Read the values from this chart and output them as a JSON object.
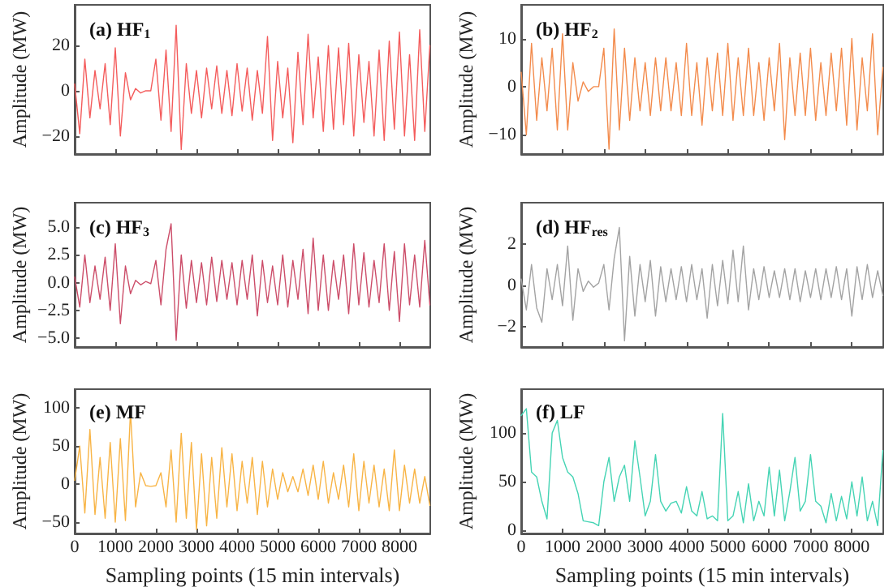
{
  "chart_data": [
    {
      "type": "line",
      "title": "(a) HF$_{1}$",
      "ylabel": "Amplitude (MW)",
      "tick_labels": "y",
      "xlim": [
        0,
        8760
      ],
      "xticks": [
        0,
        1000,
        2000,
        3000,
        4000,
        5000,
        6000,
        7000,
        8000
      ],
      "ylim": [
        -28,
        38
      ],
      "yticks": [
        {
          "value": -20,
          "label": "−20"
        },
        0,
        20
      ],
      "x": [
        0,
        125,
        250,
        375,
        500,
        625,
        750,
        875,
        1000,
        1125,
        1250,
        1375,
        1500,
        1625,
        1750,
        1875,
        2000,
        2125,
        2250,
        2375,
        2500,
        2625,
        2750,
        2875,
        3000,
        3125,
        3250,
        3375,
        3500,
        3625,
        3750,
        3875,
        4000,
        4125,
        4250,
        4375,
        4500,
        4625,
        4750,
        4875,
        5000,
        5125,
        5250,
        5375,
        5500,
        5625,
        5750,
        5875,
        6000,
        6125,
        6250,
        6375,
        6500,
        6625,
        6750,
        6875,
        7000,
        7125,
        7250,
        7375,
        7500,
        7625,
        7750,
        7875,
        8000,
        8125,
        8250,
        8375,
        8500,
        8625,
        8750
      ],
      "series": [
        {
          "color": "#f45c5c",
          "values": [
            3,
            -19,
            14,
            -12,
            9,
            -8,
            12,
            -15,
            19,
            -20,
            8,
            -4,
            1,
            -1,
            0,
            0,
            14,
            -13,
            18,
            -18,
            29,
            -26,
            12,
            -10,
            9,
            -12,
            10,
            -8,
            11,
            -10,
            9,
            -11,
            12,
            -9,
            10,
            -13,
            9,
            -10,
            24,
            -22,
            13,
            -12,
            10,
            -23,
            17,
            -15,
            25,
            -12,
            15,
            -18,
            20,
            -17,
            19,
            -15,
            21,
            -20,
            16,
            -14,
            13,
            -20,
            18,
            -22,
            22,
            -17,
            26,
            -20,
            16,
            -22,
            27,
            -18,
            20
          ]
        }
      ]
    },
    {
      "type": "line",
      "title": "(b) HF$_{2}$",
      "ylabel": "Amplitude (MW)",
      "tick_labels": "y",
      "xlim": [
        0,
        8760
      ],
      "xticks": [
        0,
        1000,
        2000,
        3000,
        4000,
        5000,
        6000,
        7000,
        8000
      ],
      "ylim": [
        -14,
        17
      ],
      "yticks": [
        {
          "value": -10,
          "label": "−10"
        },
        0,
        10
      ],
      "x": [
        0,
        125,
        250,
        375,
        500,
        625,
        750,
        875,
        1000,
        1125,
        1250,
        1375,
        1500,
        1625,
        1750,
        1875,
        2000,
        2125,
        2250,
        2375,
        2500,
        2625,
        2750,
        2875,
        3000,
        3125,
        3250,
        3375,
        3500,
        3625,
        3750,
        3875,
        4000,
        4125,
        4250,
        4375,
        4500,
        4625,
        4750,
        4875,
        5000,
        5125,
        5250,
        5375,
        5500,
        5625,
        5750,
        5875,
        6000,
        6125,
        6250,
        6375,
        6500,
        6625,
        6750,
        6875,
        7000,
        7125,
        7250,
        7375,
        7500,
        7625,
        7750,
        7875,
        8000,
        8125,
        8250,
        8375,
        8500,
        8625,
        8750
      ],
      "series": [
        {
          "color": "#f38b4c",
          "values": [
            3,
            -10,
            9,
            -7,
            6,
            -5,
            8,
            -9,
            11,
            -9,
            5,
            -3,
            1,
            -1,
            0,
            0,
            8,
            -13,
            12,
            -9,
            8,
            -7,
            6,
            -5,
            5,
            -6,
            6,
            -5,
            6,
            -5,
            5,
            -6,
            9,
            -6,
            5,
            -8,
            6,
            -5,
            7,
            -6,
            9,
            -7,
            6,
            -6,
            8,
            -6,
            5,
            -7,
            6,
            -5,
            9,
            -11,
            6,
            -6,
            7,
            -6,
            8,
            -7,
            5,
            -6,
            7,
            -5,
            8,
            -8,
            10,
            -9,
            6,
            -5,
            11,
            -10,
            4
          ]
        }
      ]
    },
    {
      "type": "line",
      "title": "(c) HF$_{3}$",
      "ylabel": "Amplitude (MW)",
      "tick_labels": "y",
      "xlim": [
        0,
        8760
      ],
      "xticks": [
        0,
        1000,
        2000,
        3000,
        4000,
        5000,
        6000,
        7000,
        8000
      ],
      "ylim": [
        -5.8,
        7.2
      ],
      "yticks": [
        {
          "value": -5,
          "label": "−5.0"
        },
        {
          "value": -2.5,
          "label": "−2.5"
        },
        {
          "value": 0,
          "label": "0.0"
        },
        2.5,
        {
          "value": 5,
          "label": "5.0"
        }
      ],
      "x": [
        0,
        125,
        250,
        375,
        500,
        625,
        750,
        875,
        1000,
        1125,
        1250,
        1375,
        1500,
        1625,
        1750,
        1875,
        2000,
        2125,
        2250,
        2375,
        2500,
        2625,
        2750,
        2875,
        3000,
        3125,
        3250,
        3375,
        3500,
        3625,
        3750,
        3875,
        4000,
        4125,
        4250,
        4375,
        4500,
        4625,
        4750,
        4875,
        5000,
        5125,
        5250,
        5375,
        5500,
        5625,
        5750,
        5875,
        6000,
        6125,
        6250,
        6375,
        6500,
        6625,
        6750,
        6875,
        7000,
        7125,
        7250,
        7375,
        7500,
        7625,
        7750,
        7875,
        8000,
        8125,
        8250,
        8375,
        8500,
        8625,
        8750
      ],
      "series": [
        {
          "color": "#cc4d69",
          "values": [
            0.5,
            -2.2,
            2.5,
            -1.8,
            1.5,
            -1.5,
            2.3,
            -2.5,
            3.5,
            -3.7,
            1.5,
            -1,
            0.2,
            -0.2,
            0.1,
            -0.1,
            2,
            -2,
            3,
            5.3,
            -5.2,
            2.5,
            -2.3,
            2,
            -1.8,
            1.8,
            -2,
            2.3,
            -1.7,
            2,
            -1.5,
            1.8,
            -2,
            2,
            -1.5,
            2.5,
            -3,
            2,
            -1.8,
            1.5,
            -2,
            2.5,
            -2.2,
            2,
            -1.5,
            3,
            -2.8,
            4,
            -2.5,
            2.5,
            -2.5,
            2,
            -1.5,
            2.5,
            -2.8,
            3.5,
            -2,
            2.7,
            -2.2,
            2,
            -1.8,
            3.5,
            -2.5,
            2.8,
            -3.5,
            3.5,
            -2,
            2.5,
            -2.2,
            3.8,
            -2
          ]
        }
      ]
    },
    {
      "type": "line",
      "title": "(d) HF$_{res}$",
      "ylabel": "Amplitude (MW)",
      "tick_labels": "y",
      "xlim": [
        0,
        8760
      ],
      "xticks": [
        0,
        1000,
        2000,
        3000,
        4000,
        5000,
        6000,
        7000,
        8000
      ],
      "ylim": [
        -3,
        4
      ],
      "yticks": [
        {
          "value": -2,
          "label": "−2"
        },
        0,
        2
      ],
      "x": [
        0,
        125,
        250,
        375,
        500,
        625,
        750,
        875,
        1000,
        1125,
        1250,
        1375,
        1500,
        1625,
        1750,
        1875,
        2000,
        2125,
        2250,
        2375,
        2500,
        2625,
        2750,
        2875,
        3000,
        3125,
        3250,
        3375,
        3500,
        3625,
        3750,
        3875,
        4000,
        4125,
        4250,
        4375,
        4500,
        4625,
        4750,
        4875,
        5000,
        5125,
        5250,
        5375,
        5500,
        5625,
        5750,
        5875,
        6000,
        6125,
        6250,
        6375,
        6500,
        6625,
        6750,
        6875,
        7000,
        7125,
        7250,
        7375,
        7500,
        7625,
        7750,
        7875,
        8000,
        8125,
        8250,
        8375,
        8500,
        8625,
        8750
      ],
      "series": [
        {
          "color": "#a3a3a3",
          "values": [
            0.3,
            -1.2,
            1,
            -1.1,
            -1.8,
            0.8,
            -0.7,
            1,
            -1,
            1.9,
            -1.7,
            0.8,
            -0.3,
            0.2,
            -0.1,
            0.1,
            1,
            -1.2,
            1.3,
            2.8,
            -2.7,
            1.4,
            -1.5,
            1,
            -0.8,
            1.2,
            -1.5,
            0.9,
            -0.8,
            0.8,
            -0.7,
            0.9,
            -0.8,
            1,
            -0.7,
            0.8,
            -1.6,
            1,
            -1,
            1.2,
            -0.9,
            1.7,
            -0.8,
            1.9,
            -1.2,
            0.8,
            -0.7,
            0.9,
            -0.6,
            0.7,
            -0.6,
            0.8,
            -0.7,
            0.8,
            -0.8,
            0.7,
            -0.6,
            0.8,
            -0.7,
            0.8,
            -0.6,
            0.9,
            -0.7,
            0.8,
            -1.5,
            0.9,
            -0.7,
            1,
            -0.6,
            0.7,
            -0.5
          ]
        }
      ]
    },
    {
      "type": "line",
      "title": "(e) MF",
      "xlabel": "Sampling points (15 min intervals)",
      "ylabel": "Amplitude (MW)",
      "xlim": [
        0,
        8760
      ],
      "xticks": [
        0,
        1000,
        2000,
        3000,
        4000,
        5000,
        6000,
        7000,
        8000
      ],
      "ylim": [
        -65,
        125
      ],
      "yticks": [
        {
          "value": -50,
          "label": "−50"
        },
        0,
        50,
        100
      ],
      "x": [
        0,
        125,
        250,
        375,
        500,
        625,
        750,
        875,
        1000,
        1125,
        1250,
        1375,
        1500,
        1625,
        1750,
        1875,
        2000,
        2125,
        2250,
        2375,
        2500,
        2625,
        2750,
        2875,
        3000,
        3125,
        3250,
        3375,
        3500,
        3625,
        3750,
        3875,
        4000,
        4125,
        4250,
        4375,
        4500,
        4625,
        4750,
        4875,
        5000,
        5125,
        5250,
        5375,
        5500,
        5625,
        5750,
        5875,
        6000,
        6125,
        6250,
        6375,
        6500,
        6625,
        6750,
        6875,
        7000,
        7125,
        7250,
        7375,
        7500,
        7625,
        7750,
        7875,
        8000,
        8125,
        8250,
        8375,
        8500,
        8625,
        8750
      ],
      "series": [
        {
          "color": "#f8b445",
          "values": [
            5,
            50,
            -38,
            72,
            -40,
            35,
            -45,
            55,
            -50,
            60,
            -48,
            96,
            -30,
            15,
            -2,
            -3,
            -2,
            15,
            -30,
            45,
            -50,
            67,
            -45,
            55,
            -60,
            40,
            -55,
            35,
            -45,
            48,
            -30,
            40,
            -35,
            30,
            -25,
            35,
            -40,
            30,
            -30,
            20,
            -20,
            15,
            -10,
            10,
            -10,
            20,
            -15,
            25,
            -20,
            30,
            -25,
            15,
            -20,
            25,
            -30,
            40,
            -35,
            30,
            -25,
            25,
            -30,
            20,
            -35,
            45,
            -35,
            25,
            -25,
            20,
            -25,
            10,
            -28
          ]
        }
      ]
    },
    {
      "type": "line",
      "title": "(f) LF",
      "xlabel": "Sampling points (15 min intervals)",
      "ylabel": "Amplitude (MW)",
      "xlim": [
        0,
        8760
      ],
      "xticks": [
        0,
        1000,
        2000,
        3000,
        4000,
        5000,
        6000,
        7000,
        8000
      ],
      "ylim": [
        -3,
        145
      ],
      "yticks": [
        0,
        50,
        100
      ],
      "x": [
        0,
        125,
        250,
        375,
        500,
        625,
        750,
        875,
        1000,
        1125,
        1250,
        1375,
        1500,
        1625,
        1750,
        1875,
        2000,
        2125,
        2250,
        2375,
        2500,
        2625,
        2750,
        2875,
        3000,
        3125,
        3250,
        3375,
        3500,
        3625,
        3750,
        3875,
        4000,
        4125,
        4250,
        4375,
        4500,
        4625,
        4750,
        4875,
        5000,
        5125,
        5250,
        5375,
        5500,
        5625,
        5750,
        5875,
        6000,
        6125,
        6250,
        6375,
        6500,
        6625,
        6750,
        6875,
        7000,
        7125,
        7250,
        7375,
        7500,
        7625,
        7750,
        7875,
        8000,
        8125,
        8250,
        8375,
        8500,
        8625,
        8750
      ],
      "series": [
        {
          "color": "#45d4b4",
          "values": [
            118,
            125,
            60,
            55,
            30,
            12,
            100,
            113,
            75,
            60,
            55,
            38,
            10,
            9,
            8,
            5,
            50,
            75,
            30,
            55,
            67,
            30,
            92,
            55,
            15,
            30,
            78,
            30,
            20,
            28,
            30,
            18,
            45,
            20,
            15,
            40,
            12,
            15,
            10,
            120,
            10,
            15,
            40,
            8,
            48,
            10,
            30,
            15,
            65,
            15,
            62,
            10,
            40,
            75,
            20,
            30,
            78,
            30,
            25,
            8,
            38,
            10,
            35,
            12,
            50,
            15,
            55,
            10,
            30,
            5,
            82
          ]
        }
      ]
    }
  ]
}
